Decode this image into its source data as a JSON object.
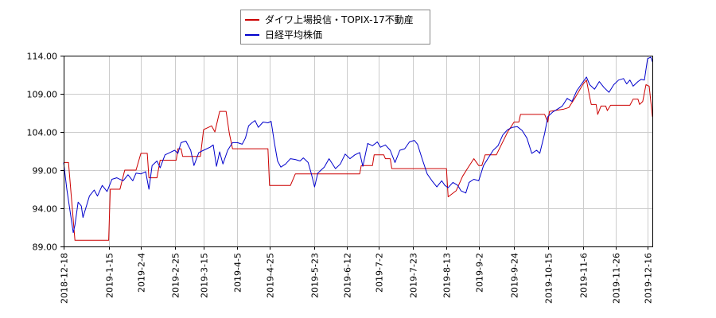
{
  "chart_data": {
    "type": "line",
    "title": "",
    "xlabel": "",
    "ylabel": "",
    "ylim": [
      89.0,
      114.0
    ],
    "y_ticks": [
      "89.00",
      "94.00",
      "99.00",
      "104.00",
      "109.00",
      "114.00"
    ],
    "x_ticks": [
      "2018-12-18",
      "2019-1-15",
      "2019-2-4",
      "2019-2-25",
      "2019-3-15",
      "2019-4-5",
      "2019-4-25",
      "2019-5-23",
      "2019-6-12",
      "2019-7-2",
      "2019-7-23",
      "2019-8-13",
      "2019-9-2",
      "2019-9-24",
      "2019-10-15",
      "2019-11-6",
      "2019-11-26",
      "2019-12-16"
    ],
    "grid": true,
    "legend_position": "top",
    "series": [
      {
        "name": "ダイワ上場投信・TOPIX-17不動産",
        "color": "#cc0000",
        "points": [
          [
            "2018-12-18",
            100.0
          ],
          [
            "2018-12-21",
            100.0
          ],
          [
            "2018-12-25",
            89.8
          ],
          [
            "2018-12-28",
            89.8
          ],
          [
            "2019-1-10",
            89.8
          ],
          [
            "2019-1-15",
            89.8
          ],
          [
            "2019-1-16",
            96.5
          ],
          [
            "2019-1-22",
            96.5
          ],
          [
            "2019-1-25",
            99.0
          ],
          [
            "2019-2-1",
            99.0
          ],
          [
            "2019-2-4",
            101.2
          ],
          [
            "2019-2-8",
            101.2
          ],
          [
            "2019-2-9",
            98.0
          ],
          [
            "2019-2-14",
            98.0
          ],
          [
            "2019-2-16",
            100.3
          ],
          [
            "2019-2-26",
            100.3
          ],
          [
            "2019-2-27",
            101.8
          ],
          [
            "2019-3-1",
            101.8
          ],
          [
            "2019-3-2",
            100.8
          ],
          [
            "2019-3-13",
            100.8
          ],
          [
            "2019-3-15",
            104.3
          ],
          [
            "2019-3-20",
            104.8
          ],
          [
            "2019-3-22",
            104.0
          ],
          [
            "2019-3-25",
            106.7
          ],
          [
            "2019-3-29",
            106.7
          ],
          [
            "2019-3-31",
            103.8
          ],
          [
            "2019-4-2",
            101.8
          ],
          [
            "2019-4-24",
            101.8
          ],
          [
            "2019-4-25",
            97.0
          ],
          [
            "2019-5-8",
            97.0
          ],
          [
            "2019-5-11",
            98.5
          ],
          [
            "2019-6-5",
            98.5
          ],
          [
            "2019-6-20",
            98.5
          ],
          [
            "2019-6-21",
            99.6
          ],
          [
            "2019-6-28",
            99.6
          ],
          [
            "2019-6-29",
            101.0
          ],
          [
            "2019-7-5",
            101.0
          ],
          [
            "2019-7-6",
            100.5
          ],
          [
            "2019-7-9",
            100.5
          ],
          [
            "2019-7-10",
            99.2
          ],
          [
            "2019-8-13",
            99.2
          ],
          [
            "2019-8-14",
            95.5
          ],
          [
            "2019-8-19",
            96.3
          ],
          [
            "2019-8-23",
            98.2
          ],
          [
            "2019-8-26",
            99.2
          ],
          [
            "2019-8-30",
            100.5
          ],
          [
            "2019-9-2",
            99.6
          ],
          [
            "2019-9-4",
            99.6
          ],
          [
            "2019-9-6",
            101.0
          ],
          [
            "2019-9-13",
            101.0
          ],
          [
            "2019-9-20",
            104.0
          ],
          [
            "2019-9-24",
            105.3
          ],
          [
            "2019-9-27",
            105.3
          ],
          [
            "2019-9-28",
            106.3
          ],
          [
            "2019-10-13",
            106.3
          ],
          [
            "2019-10-15",
            105.3
          ],
          [
            "2019-10-16",
            106.7
          ],
          [
            "2019-10-25",
            107.0
          ],
          [
            "2019-10-28",
            107.2
          ],
          [
            "2019-11-1",
            108.5
          ],
          [
            "2019-11-4",
            109.6
          ],
          [
            "2019-11-6",
            110.3
          ],
          [
            "2019-11-8",
            110.8
          ],
          [
            "2019-11-10",
            108.6
          ],
          [
            "2019-11-11",
            107.6
          ],
          [
            "2019-11-14",
            107.6
          ],
          [
            "2019-11-15",
            106.3
          ],
          [
            "2019-11-17",
            107.4
          ],
          [
            "2019-11-20",
            107.4
          ],
          [
            "2019-11-21",
            106.8
          ],
          [
            "2019-11-23",
            107.5
          ],
          [
            "2019-12-5",
            107.5
          ],
          [
            "2019-12-7",
            108.3
          ],
          [
            "2019-12-10",
            108.3
          ],
          [
            "2019-12-11",
            107.6
          ],
          [
            "2019-12-13",
            108.0
          ],
          [
            "2019-12-15",
            110.2
          ],
          [
            "2019-12-17",
            110.0
          ],
          [
            "2019-12-19",
            106.0
          ]
        ]
      },
      {
        "name": "日経平均株価",
        "color": "#0000cc",
        "points": [
          [
            "2018-12-18",
            100.0
          ],
          [
            "2018-12-20",
            96.5
          ],
          [
            "2018-12-24",
            90.8
          ],
          [
            "2018-12-25",
            91.8
          ],
          [
            "2018-12-27",
            94.8
          ],
          [
            "2018-12-29",
            94.3
          ],
          [
            "2018-12-30",
            92.8
          ],
          [
            "2019-1-3",
            95.6
          ],
          [
            "2019-1-6",
            96.4
          ],
          [
            "2019-1-8",
            95.6
          ],
          [
            "2019-1-11",
            97.0
          ],
          [
            "2019-1-14",
            96.2
          ],
          [
            "2019-1-17",
            97.8
          ],
          [
            "2019-1-20",
            98.0
          ],
          [
            "2019-1-24",
            97.6
          ],
          [
            "2019-1-27",
            98.4
          ],
          [
            "2019-1-30",
            97.6
          ],
          [
            "2019-2-1",
            98.6
          ],
          [
            "2019-2-4",
            98.5
          ],
          [
            "2019-2-7",
            98.8
          ],
          [
            "2019-2-9",
            96.5
          ],
          [
            "2019-2-11",
            99.6
          ],
          [
            "2019-2-14",
            100.2
          ],
          [
            "2019-2-16",
            99.3
          ],
          [
            "2019-2-19",
            101.0
          ],
          [
            "2019-2-22",
            101.3
          ],
          [
            "2019-2-25",
            101.6
          ],
          [
            "2019-2-27",
            101.2
          ],
          [
            "2019-3-1",
            102.6
          ],
          [
            "2019-3-4",
            102.8
          ],
          [
            "2019-3-7",
            101.6
          ],
          [
            "2019-3-9",
            99.6
          ],
          [
            "2019-3-12",
            101.3
          ],
          [
            "2019-3-15",
            101.6
          ],
          [
            "2019-3-19",
            102.0
          ],
          [
            "2019-3-21",
            102.3
          ],
          [
            "2019-3-23",
            99.5
          ],
          [
            "2019-3-25",
            101.4
          ],
          [
            "2019-3-27",
            99.8
          ],
          [
            "2019-3-30",
            101.6
          ],
          [
            "2019-4-2",
            102.6
          ],
          [
            "2019-4-5",
            102.6
          ],
          [
            "2019-4-8",
            102.4
          ],
          [
            "2019-4-10",
            103.2
          ],
          [
            "2019-4-12",
            104.8
          ],
          [
            "2019-4-14",
            105.2
          ],
          [
            "2019-4-16",
            105.5
          ],
          [
            "2019-4-18",
            104.6
          ],
          [
            "2019-4-21",
            105.3
          ],
          [
            "2019-4-24",
            105.2
          ],
          [
            "2019-4-26",
            105.4
          ],
          [
            "2019-4-28",
            102.6
          ],
          [
            "2019-4-30",
            100.2
          ],
          [
            "2019-5-2",
            99.4
          ],
          [
            "2019-5-5",
            99.8
          ],
          [
            "2019-5-8",
            100.5
          ],
          [
            "2019-5-11",
            100.4
          ],
          [
            "2019-5-14",
            100.2
          ],
          [
            "2019-5-16",
            100.6
          ],
          [
            "2019-5-19",
            100.0
          ],
          [
            "2019-5-21",
            98.5
          ],
          [
            "2019-5-23",
            96.8
          ],
          [
            "2019-5-25",
            98.6
          ],
          [
            "2019-5-29",
            99.4
          ],
          [
            "2019-6-1",
            100.5
          ],
          [
            "2019-6-5",
            99.2
          ],
          [
            "2019-6-8",
            99.8
          ],
          [
            "2019-6-11",
            101.1
          ],
          [
            "2019-6-14",
            100.5
          ],
          [
            "2019-6-17",
            101.0
          ],
          [
            "2019-6-20",
            101.3
          ],
          [
            "2019-6-22",
            99.5
          ],
          [
            "2019-6-25",
            102.5
          ],
          [
            "2019-6-28",
            102.2
          ],
          [
            "2019-7-1",
            102.7
          ],
          [
            "2019-7-3",
            102.0
          ],
          [
            "2019-7-6",
            102.3
          ],
          [
            "2019-7-9",
            101.6
          ],
          [
            "2019-7-12",
            100.0
          ],
          [
            "2019-7-15",
            101.6
          ],
          [
            "2019-7-18",
            101.8
          ],
          [
            "2019-7-21",
            102.7
          ],
          [
            "2019-7-24",
            102.9
          ],
          [
            "2019-7-26",
            102.4
          ],
          [
            "2019-7-29",
            100.4
          ],
          [
            "2019-8-1",
            98.5
          ],
          [
            "2019-8-4",
            97.6
          ],
          [
            "2019-8-7",
            96.8
          ],
          [
            "2019-8-10",
            97.6
          ],
          [
            "2019-8-12",
            97.0
          ],
          [
            "2019-8-14",
            96.7
          ],
          [
            "2019-8-17",
            97.4
          ],
          [
            "2019-8-20",
            97.0
          ],
          [
            "2019-8-22",
            96.3
          ],
          [
            "2019-8-25",
            96.0
          ],
          [
            "2019-8-27",
            97.4
          ],
          [
            "2019-8-30",
            97.8
          ],
          [
            "2019-9-2",
            97.6
          ],
          [
            "2019-9-5",
            99.6
          ],
          [
            "2019-9-8",
            100.6
          ],
          [
            "2019-9-11",
            101.6
          ],
          [
            "2019-9-14",
            102.2
          ],
          [
            "2019-9-17",
            103.6
          ],
          [
            "2019-9-20",
            104.3
          ],
          [
            "2019-9-23",
            104.6
          ],
          [
            "2019-9-26",
            104.7
          ],
          [
            "2019-9-29",
            104.2
          ],
          [
            "2019-10-2",
            103.2
          ],
          [
            "2019-10-5",
            101.2
          ],
          [
            "2019-10-8",
            101.6
          ],
          [
            "2019-10-10",
            101.2
          ],
          [
            "2019-10-13",
            103.8
          ],
          [
            "2019-10-15",
            106.0
          ],
          [
            "2019-10-18",
            106.6
          ],
          [
            "2019-10-21",
            107.0
          ],
          [
            "2019-10-24",
            107.4
          ],
          [
            "2019-10-27",
            108.4
          ],
          [
            "2019-10-30",
            108.0
          ],
          [
            "2019-11-2",
            109.4
          ],
          [
            "2019-11-5",
            110.3
          ],
          [
            "2019-11-8",
            111.2
          ],
          [
            "2019-11-10",
            110.2
          ],
          [
            "2019-11-13",
            109.6
          ],
          [
            "2019-11-16",
            110.6
          ],
          [
            "2019-11-19",
            109.8
          ],
          [
            "2019-11-22",
            109.2
          ],
          [
            "2019-11-25",
            110.2
          ],
          [
            "2019-11-28",
            110.8
          ],
          [
            "2019-12-1",
            111.0
          ],
          [
            "2019-12-3",
            110.3
          ],
          [
            "2019-12-5",
            110.8
          ],
          [
            "2019-12-7",
            110.0
          ],
          [
            "2019-12-10",
            110.6
          ],
          [
            "2019-12-12",
            110.9
          ],
          [
            "2019-12-14",
            110.8
          ],
          [
            "2019-12-16",
            113.6
          ],
          [
            "2019-12-18",
            113.8
          ],
          [
            "2019-12-19",
            113.2
          ]
        ]
      }
    ]
  }
}
